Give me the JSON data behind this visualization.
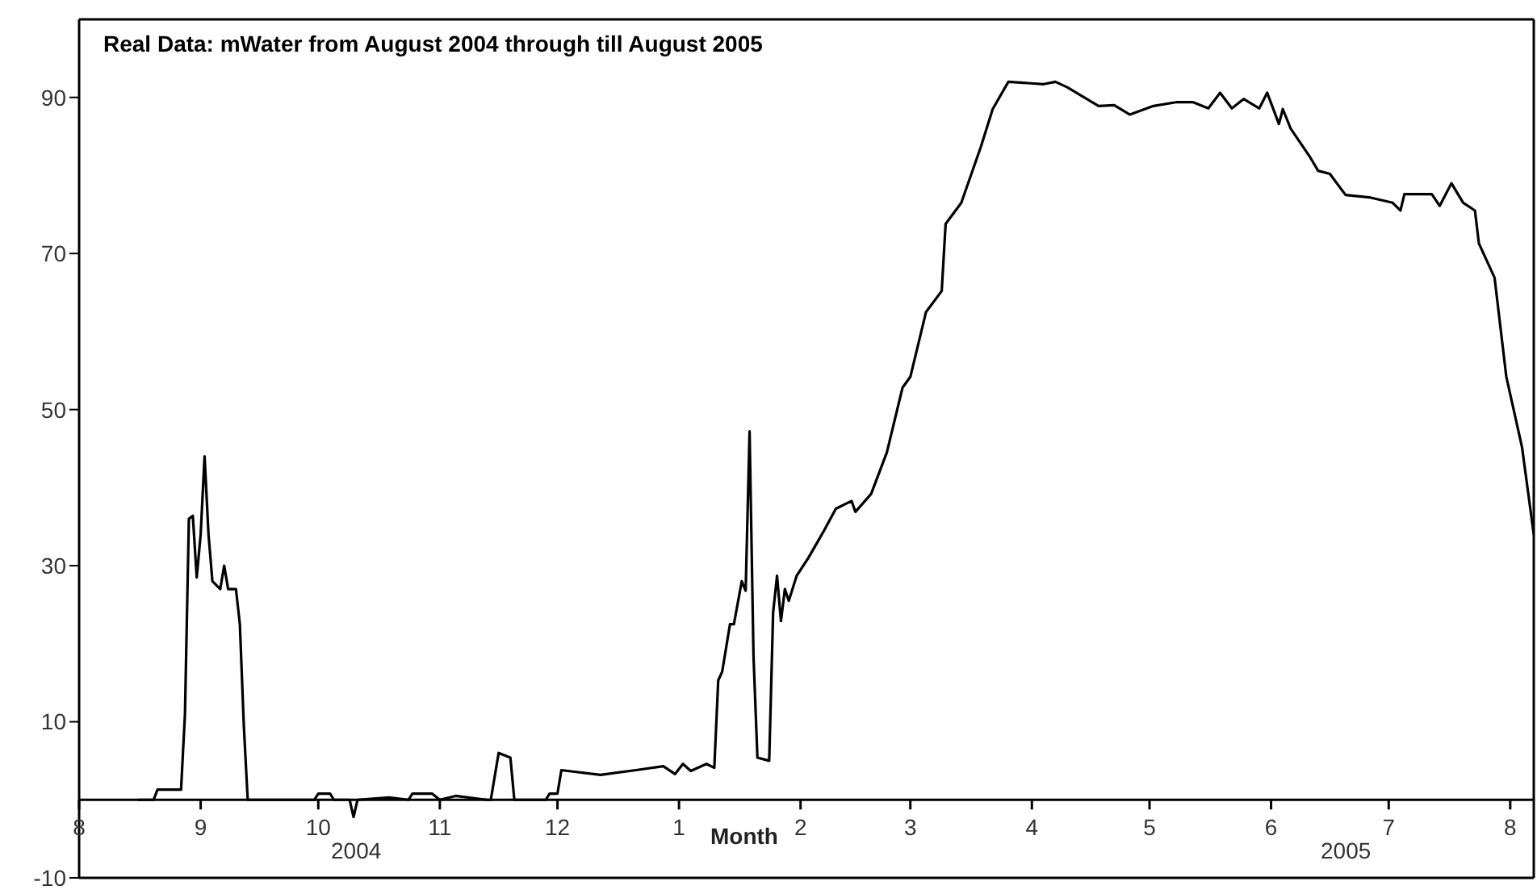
{
  "chart_data": {
    "type": "line",
    "title": "Real Data: mWater from August 2004 through till August 2005",
    "xlabel": "Month",
    "annotations": [
      "2004",
      "2005"
    ],
    "xlim": [
      "2004-08-01",
      "2005-08-07"
    ],
    "ylim": [
      -10,
      100
    ],
    "xticks": [
      {
        "value": "2004-08-01",
        "label": "8"
      },
      {
        "value": "2004-09-01",
        "label": "9"
      },
      {
        "value": "2004-10-01",
        "label": "10"
      },
      {
        "value": "2004-11-01",
        "label": "11"
      },
      {
        "value": "2004-12-01",
        "label": "12"
      },
      {
        "value": "2005-01-01",
        "label": "1"
      },
      {
        "value": "2005-02-01",
        "label": "2"
      },
      {
        "value": "2005-03-01",
        "label": "3"
      },
      {
        "value": "2005-04-01",
        "label": "4"
      },
      {
        "value": "2005-05-01",
        "label": "5"
      },
      {
        "value": "2005-06-01",
        "label": "6"
      },
      {
        "value": "2005-07-01",
        "label": "7"
      },
      {
        "value": "2005-08-01",
        "label": "8"
      }
    ],
    "yticks": [
      -10,
      10,
      30,
      50,
      70,
      90
    ],
    "grid": false,
    "legend": false,
    "marker": "none",
    "line_style": "solid",
    "series": [
      {
        "color": "#000000",
        "x": [
          "2004-08-16",
          "2004-08-20",
          "2004-08-21",
          "2004-08-27",
          "2004-08-28",
          "2004-08-29",
          "2004-08-30",
          "2004-08-31",
          "2004-09-01",
          "2004-09-02",
          "2004-09-03",
          "2004-09-04",
          "2004-09-06",
          "2004-09-07",
          "2004-09-08",
          "2004-09-10",
          "2004-09-11",
          "2004-09-12",
          "2004-09-13",
          "2004-09-19",
          "2004-09-30",
          "2004-10-01",
          "2004-10-04",
          "2004-10-05",
          "2004-10-09",
          "2004-10-10",
          "2004-10-11",
          "2004-10-19",
          "2004-10-24",
          "2004-10-25",
          "2004-10-30",
          "2004-11-01",
          "2004-11-05",
          "2004-11-13",
          "2004-11-14",
          "2004-11-16",
          "2004-11-19",
          "2004-11-20",
          "2004-11-28",
          "2004-11-29",
          "2004-12-01",
          "2004-12-02",
          "2004-12-12",
          "2004-12-21",
          "2004-12-28",
          "2004-12-31",
          "2005-01-02",
          "2005-01-04",
          "2005-01-08",
          "2005-01-10",
          "2005-01-11",
          "2005-01-12",
          "2005-01-14",
          "2005-01-15",
          "2005-01-17",
          "2005-01-18",
          "2005-01-19",
          "2005-01-20",
          "2005-01-21",
          "2005-01-24",
          "2005-01-25",
          "2005-01-26",
          "2005-01-27",
          "2005-01-28",
          "2005-01-29",
          "2005-01-31",
          "2005-02-03",
          "2005-02-07",
          "2005-02-10",
          "2005-02-14",
          "2005-02-15",
          "2005-02-19",
          "2005-02-23",
          "2005-02-27",
          "2005-03-01",
          "2005-03-05",
          "2005-03-09",
          "2005-03-10",
          "2005-03-14",
          "2005-03-19",
          "2005-03-22",
          "2005-03-26",
          "2005-04-04",
          "2005-04-07",
          "2005-04-10",
          "2005-04-18",
          "2005-04-22",
          "2005-04-26",
          "2005-05-02",
          "2005-05-08",
          "2005-05-12",
          "2005-05-16",
          "2005-05-19",
          "2005-05-22",
          "2005-05-25",
          "2005-05-29",
          "2005-05-31",
          "2005-06-03",
          "2005-06-04",
          "2005-06-06",
          "2005-06-11",
          "2005-06-13",
          "2005-06-16",
          "2005-06-20",
          "2005-06-26",
          "2005-07-02",
          "2005-07-04",
          "2005-07-05",
          "2005-07-12",
          "2005-07-14",
          "2005-07-17",
          "2005-07-20",
          "2005-07-23",
          "2005-07-24",
          "2005-07-28",
          "2005-07-31",
          "2005-08-04",
          "2005-08-07"
        ],
        "values": [
          0,
          0,
          1.3,
          1.3,
          11,
          36,
          36.4,
          28.5,
          34,
          44,
          34,
          28,
          27,
          30,
          27,
          27,
          22.5,
          9.6,
          0,
          0,
          0,
          0.8,
          0.8,
          0,
          0,
          -2.2,
          0,
          0.3,
          0,
          0.8,
          0.8,
          0,
          0.5,
          0,
          0,
          6,
          5.4,
          0,
          0,
          0.8,
          0.8,
          3.8,
          3.2,
          3.8,
          4.3,
          3.3,
          4.6,
          3.7,
          4.6,
          4.1,
          15.3,
          16.4,
          22.5,
          22.5,
          28,
          26.8,
          47.2,
          18.4,
          5.4,
          5,
          24,
          28.7,
          22.9,
          27,
          25.5,
          28.7,
          31,
          34.5,
          37.3,
          38.3,
          36.9,
          39.2,
          44.5,
          52.8,
          54.2,
          62.5,
          65.2,
          73.8,
          76.5,
          83.7,
          88.5,
          92,
          91.7,
          92,
          91.3,
          88.9,
          89,
          87.8,
          88.9,
          89.4,
          89.4,
          88.6,
          90.6,
          88.6,
          89.8,
          88.6,
          90.6,
          86.6,
          88.5,
          86,
          82.3,
          80.6,
          80.2,
          77.5,
          77.2,
          76.5,
          75.5,
          77.6,
          77.6,
          76.1,
          79,
          76.5,
          75.5,
          71.3,
          66.9,
          54.2,
          45.2,
          34
        ]
      }
    ]
  }
}
